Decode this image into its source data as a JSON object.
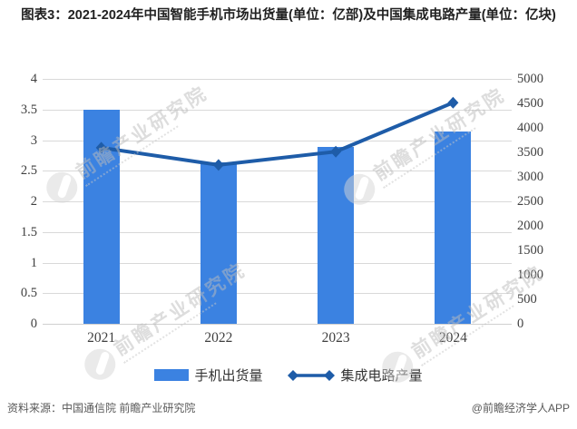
{
  "title": "图表3：2021-2024年中国智能手机市场出货量(单位：亿部)及中国集成电路产量(单位：亿块)",
  "chart_data": {
    "type": "bar",
    "subtype": "bar-line-combo",
    "categories": [
      "2021",
      "2022",
      "2023",
      "2024"
    ],
    "series": [
      {
        "name": "手机出货量",
        "type": "bar",
        "axis": "left",
        "unit": "亿部",
        "values": [
          3.5,
          2.64,
          2.89,
          3.14
        ]
      },
      {
        "name": "集成电路产量",
        "type": "line",
        "axis": "right",
        "unit": "亿块",
        "values": [
          3594,
          3242,
          3514,
          4514
        ]
      }
    ],
    "left_axis": {
      "min": 0,
      "max": 4,
      "step": 0.5,
      "ticks": [
        "4",
        "3.5",
        "3",
        "2.5",
        "2",
        "1.5",
        "1",
        "0.5",
        "0"
      ]
    },
    "right_axis": {
      "min": 0,
      "max": 5000,
      "step": 500,
      "ticks": [
        "5000",
        "4500",
        "4000",
        "3500",
        "3000",
        "2500",
        "2000",
        "1500",
        "1000",
        "500",
        "0"
      ]
    },
    "grid": true,
    "legend_position": "bottom"
  },
  "legend": {
    "items": [
      {
        "label": "手机出货量",
        "marker": "bar-swatch"
      },
      {
        "label": "集成电路产量",
        "marker": "line-with-diamonds"
      }
    ]
  },
  "footer": {
    "source": "资料来源：中国通信院 前瞻产业研究院",
    "brand": "@前瞻经济学人APP"
  },
  "watermark": {
    "text": "前瞻产业研究院",
    "logo": "qianzhan-circle-logo-icon"
  },
  "colors": {
    "bar_blue": "#3B82E1",
    "line_blue": "#1E5CA8",
    "grid_gray": "#D9D9D9",
    "axis_text": "#3F3F3F",
    "title_text": "#212121",
    "footer_text": "#595959",
    "watermark_gray": "#BCBCBC"
  }
}
